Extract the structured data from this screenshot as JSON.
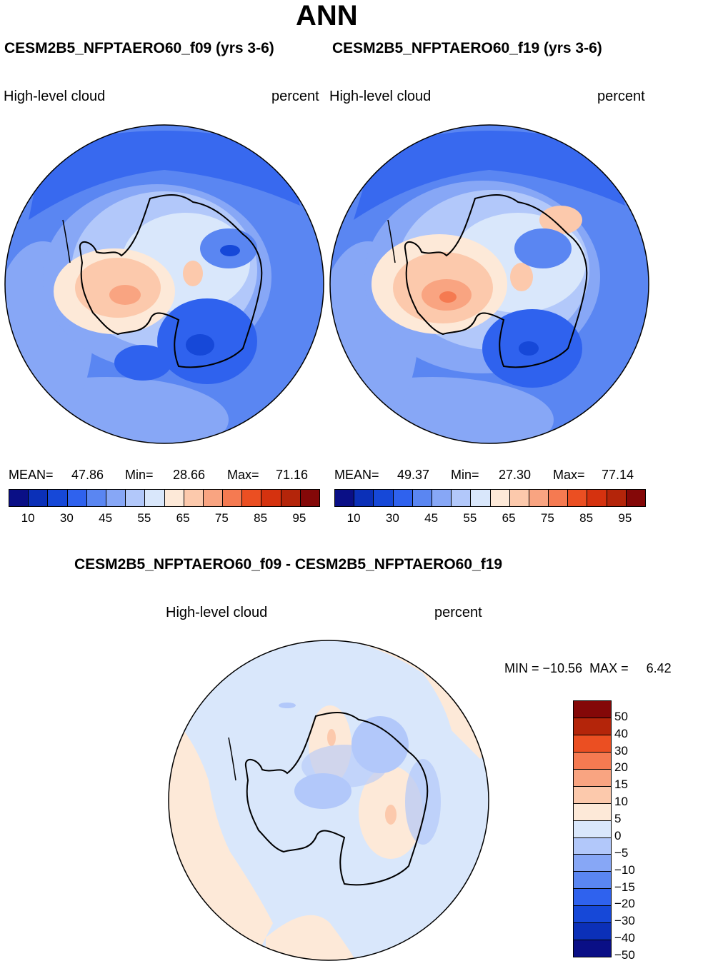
{
  "title": "ANN",
  "panel_left": {
    "case": "CESM2B5_NFPTAERO60_f09 (yrs 3-6)",
    "variable": "High-level cloud",
    "units": "percent",
    "mean_label": "MEAN=",
    "mean": "47.86",
    "min_label": "Min=",
    "min": "28.66",
    "max_label": "Max=",
    "max": "71.16"
  },
  "panel_right": {
    "case": "CESM2B5_NFPTAERO60_f19 (yrs 3-6)",
    "variable": "High-level cloud",
    "units": "percent",
    "mean_label": "MEAN=",
    "mean": "49.37",
    "min_label": "Min=",
    "min": "27.30",
    "max_label": "Max=",
    "max": "77.14"
  },
  "colorbar_top": {
    "colors": [
      "#0a0f86",
      "#0b30b8",
      "#1648d8",
      "#2f62ee",
      "#5a86f2",
      "#87a7f6",
      "#b2c8fa",
      "#d9e7fb",
      "#fde9d8",
      "#fcc9ac",
      "#f9a481",
      "#f57a51",
      "#eb4f22",
      "#d5320f",
      "#b4250a",
      "#840808"
    ],
    "ticks": [
      "10",
      "30",
      "45",
      "55",
      "65",
      "75",
      "85",
      "95"
    ]
  },
  "panel_diff": {
    "case": "CESM2B5_NFPTAERO60_f09 - CESM2B5_NFPTAERO60_f19",
    "variable": "High-level cloud",
    "units": "percent",
    "minmax": "MIN = −10.56  MAX =     6.42"
  },
  "colorbar_diff": {
    "colors": [
      "#840808",
      "#b4250a",
      "#eb4f22",
      "#f57a51",
      "#f9a481",
      "#fcc9ac",
      "#fde9d8",
      "#d9e7fb",
      "#b2c8fa",
      "#87a7f6",
      "#5a86f2",
      "#2f62ee",
      "#1648d8",
      "#0b30b8",
      "#0a0f86"
    ],
    "ticks": [
      "50",
      "40",
      "30",
      "20",
      "15",
      "10",
      "5",
      "0",
      "−5",
      "−10",
      "−15",
      "−20",
      "−30",
      "−40",
      "−50"
    ]
  }
}
